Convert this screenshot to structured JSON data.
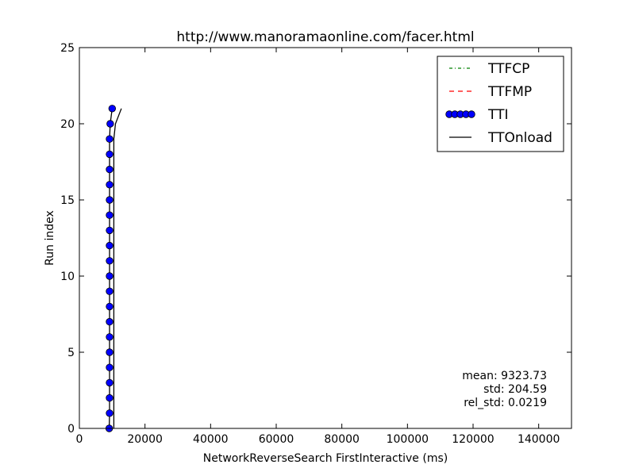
{
  "chart_data": {
    "type": "line",
    "title": "http://www.manoramaonline.com/facer.html",
    "xlabel": "NetworkReverseSearch FirstInteractive (ms)",
    "ylabel": "Run index",
    "xlim": [
      0,
      150000
    ],
    "ylim": [
      0,
      25
    ],
    "xticks": [
      0,
      20000,
      40000,
      60000,
      80000,
      100000,
      120000,
      140000
    ],
    "yticks": [
      0,
      5,
      10,
      15,
      20,
      25
    ],
    "grid": false,
    "legend_position": "top-right",
    "legend": [
      {
        "name": "TTFCP",
        "style": "dash-dot",
        "color": "#008000"
      },
      {
        "name": "TTFMP",
        "style": "dashed",
        "color": "#ff0000"
      },
      {
        "name": "TTI",
        "style": "marker-line",
        "color": "#0000ff"
      },
      {
        "name": "TTOnload",
        "style": "solid",
        "color": "#000000"
      }
    ],
    "series": [
      {
        "name": "TTI",
        "color": "#0000ff",
        "x": [
          9100,
          9200,
          9200,
          9200,
          9200,
          9200,
          9200,
          9200,
          9200,
          9200,
          9200,
          9200,
          9200,
          9200,
          9200,
          9200,
          9200,
          9200,
          9200,
          9200,
          9400,
          10000
        ],
        "y": [
          0,
          1,
          2,
          3,
          4,
          5,
          6,
          7,
          8,
          9,
          10,
          11,
          12,
          13,
          14,
          15,
          16,
          17,
          18,
          19,
          20,
          21
        ]
      },
      {
        "name": "TTOnload",
        "color": "#000000",
        "x": [
          10500,
          10500,
          10500,
          10500,
          10500,
          10500,
          10500,
          10500,
          10500,
          10500,
          10500,
          10500,
          10500,
          10500,
          10500,
          10500,
          10500,
          10500,
          10500,
          10500,
          11000,
          12800
        ],
        "y": [
          0,
          1,
          2,
          3,
          4,
          5,
          6,
          7,
          8,
          9,
          10,
          11,
          12,
          13,
          14,
          15,
          16,
          17,
          18,
          19,
          20,
          21
        ]
      }
    ],
    "annotations": [
      "mean: 9323.73",
      "std: 204.59",
      "rel_std: 0.0219"
    ]
  }
}
